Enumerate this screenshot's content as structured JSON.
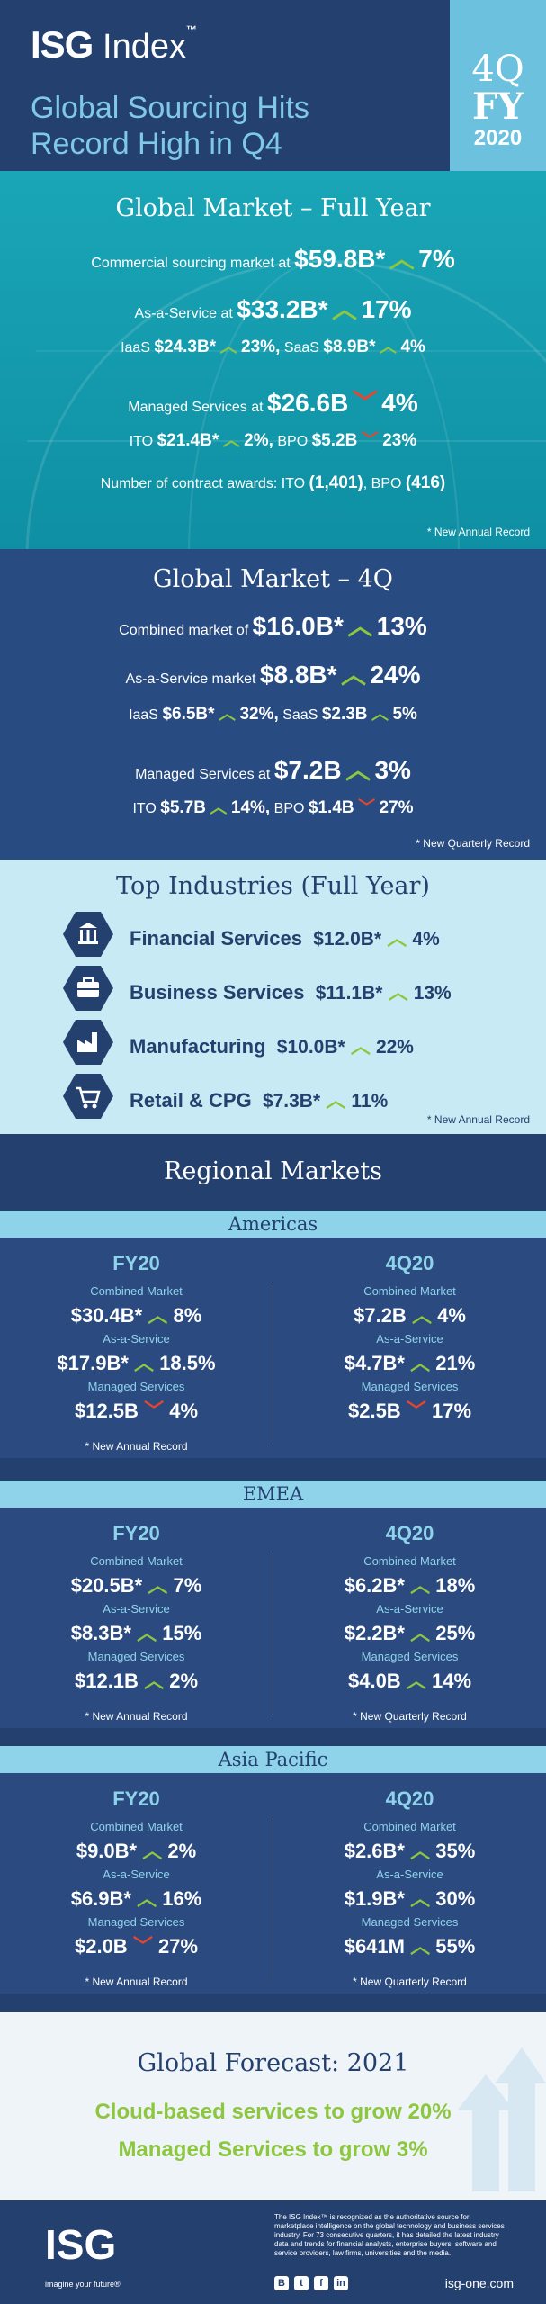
{
  "header": {
    "logo_text": "ISG",
    "logo_index": "Index",
    "logo_tm": "™",
    "title_line1": "Global Sourcing Hits",
    "title_line2": "Record High in Q4",
    "badge_line1": "4Q",
    "badge_line2": "FY",
    "badge_line3": "2020"
  },
  "full_year": {
    "title": "Global Market – Full Year",
    "commercial_label": "Commercial sourcing market at",
    "commercial_value": "$59.8B*",
    "commercial_change": "7%",
    "aas_label": "As-a-Service at",
    "aas_value": "$33.2B*",
    "aas_change": "17%",
    "iaas_label": "IaaS",
    "iaas_value": "$24.3B*",
    "iaas_change": "23%,",
    "saas_label": "SaaS",
    "saas_value": "$8.9B*",
    "saas_change": "4%",
    "ms_label": "Managed Services at",
    "ms_value": "$26.6B",
    "ms_change": "4%",
    "ito_label": "ITO",
    "ito_value": "$21.4B*",
    "ito_change": "2%,",
    "bpo_label": "BPO",
    "bpo_value": "$5.2B",
    "bpo_change": "23%",
    "awards_label": "Number of contract awards: ITO",
    "awards_ito": "(1,401)",
    "awards_bpo_label": ", BPO",
    "awards_bpo": "(416)",
    "note": "* New Annual Record"
  },
  "q4": {
    "title": "Global Market – 4Q",
    "combined_label": "Combined market of",
    "combined_value": "$16.0B*",
    "combined_change": "13%",
    "aas_label": "As-a-Service market",
    "aas_value": "$8.8B*",
    "aas_change": "24%",
    "iaas_label": "IaaS",
    "iaas_value": "$6.5B*",
    "iaas_change": "32%,",
    "saas_label": "SaaS",
    "saas_value": "$2.3B",
    "saas_change": "5%",
    "ms_label": "Managed Services at",
    "ms_value": "$7.2B",
    "ms_change": "3%",
    "ito_label": "ITO",
    "ito_value": "$5.7B",
    "ito_change": "14%,",
    "bpo_label": "BPO",
    "bpo_value": "$1.4B",
    "bpo_change": "27%",
    "note": "* New Quarterly Record"
  },
  "industries": {
    "title": "Top Industries (Full Year)",
    "items": [
      {
        "name": "Financial Services",
        "value": "$12.0B*",
        "change": "4%",
        "icon": "bank-icon"
      },
      {
        "name": "Business Services",
        "value": "$11.1B*",
        "change": "13%",
        "icon": "briefcase-icon"
      },
      {
        "name": "Manufacturing",
        "value": "$10.0B*",
        "change": "22%",
        "icon": "factory-icon"
      },
      {
        "name": "Retail & CPG",
        "value": "$7.3B*",
        "change": "11%",
        "icon": "cart-icon"
      }
    ],
    "note": "* New Annual Record"
  },
  "regional": {
    "title": "Regional Markets",
    "labels": {
      "combined": "Combined Market",
      "aas": "As-a-Service",
      "ms": "Managed Services"
    },
    "regions": [
      {
        "name": "Americas",
        "fy": {
          "heading": "FY20",
          "combined": "$30.4B*",
          "combined_change": "8%",
          "aas": "$17.9B*",
          "aas_change": "18.5%",
          "ms": "$12.5B",
          "ms_change": "4%",
          "note": "* New Annual Record"
        },
        "q": {
          "heading": "4Q20",
          "combined": "$7.2B",
          "combined_change": "4%",
          "aas": "$4.7B*",
          "aas_change": "21%",
          "ms": "$2.5B",
          "ms_change": "17%",
          "note": ""
        }
      },
      {
        "name": "EMEA",
        "fy": {
          "heading": "FY20",
          "combined": "$20.5B*",
          "combined_change": "7%",
          "aas": "$8.3B*",
          "aas_change": "15%",
          "ms": "$12.1B",
          "ms_change": "2%",
          "note": "* New Annual Record"
        },
        "q": {
          "heading": "4Q20",
          "combined": "$6.2B*",
          "combined_change": "18%",
          "aas": "$2.2B*",
          "aas_change": "25%",
          "ms": "$4.0B",
          "ms_change": "14%",
          "note": "* New Quarterly Record"
        }
      },
      {
        "name": "Asia Pacific",
        "fy": {
          "heading": "FY20",
          "combined": "$9.0B*",
          "combined_change": "2%",
          "aas": "$6.9B*",
          "aas_change": "16%",
          "ms": "$2.0B",
          "ms_change": "27%",
          "note": "* New Annual Record"
        },
        "q": {
          "heading": "4Q20",
          "combined": "$2.6B*",
          "combined_change": "35%",
          "aas": "$1.9B*",
          "aas_change": "30%",
          "ms": "$641M",
          "ms_change": "55%",
          "note": "* New Quarterly Record"
        }
      }
    ]
  },
  "forecast": {
    "title": "Global Forecast: 2021",
    "line1": "Cloud-based services to grow 20%",
    "line2": "Managed Services to grow 3%"
  },
  "footer": {
    "logo": "ISG",
    "tagline": "imagine your future®",
    "description": "The ISG Index™ is recognized as the authoritative source for marketplace intelligence on the global technology and business services industry. For 73 consecutive quarters, it has detailed the latest industry data and trends for financial analysts, enterprise buyers, software and service providers, law firms, universities and the media.",
    "url": "isg-one.com",
    "social": [
      "B",
      "t",
      "f",
      "in"
    ]
  },
  "colors": {
    "navy": "#24406f",
    "teal": "#1aa6b7",
    "light_blue": "#8fd3ea",
    "green": "#8dc63f",
    "red": "#e8452c"
  }
}
